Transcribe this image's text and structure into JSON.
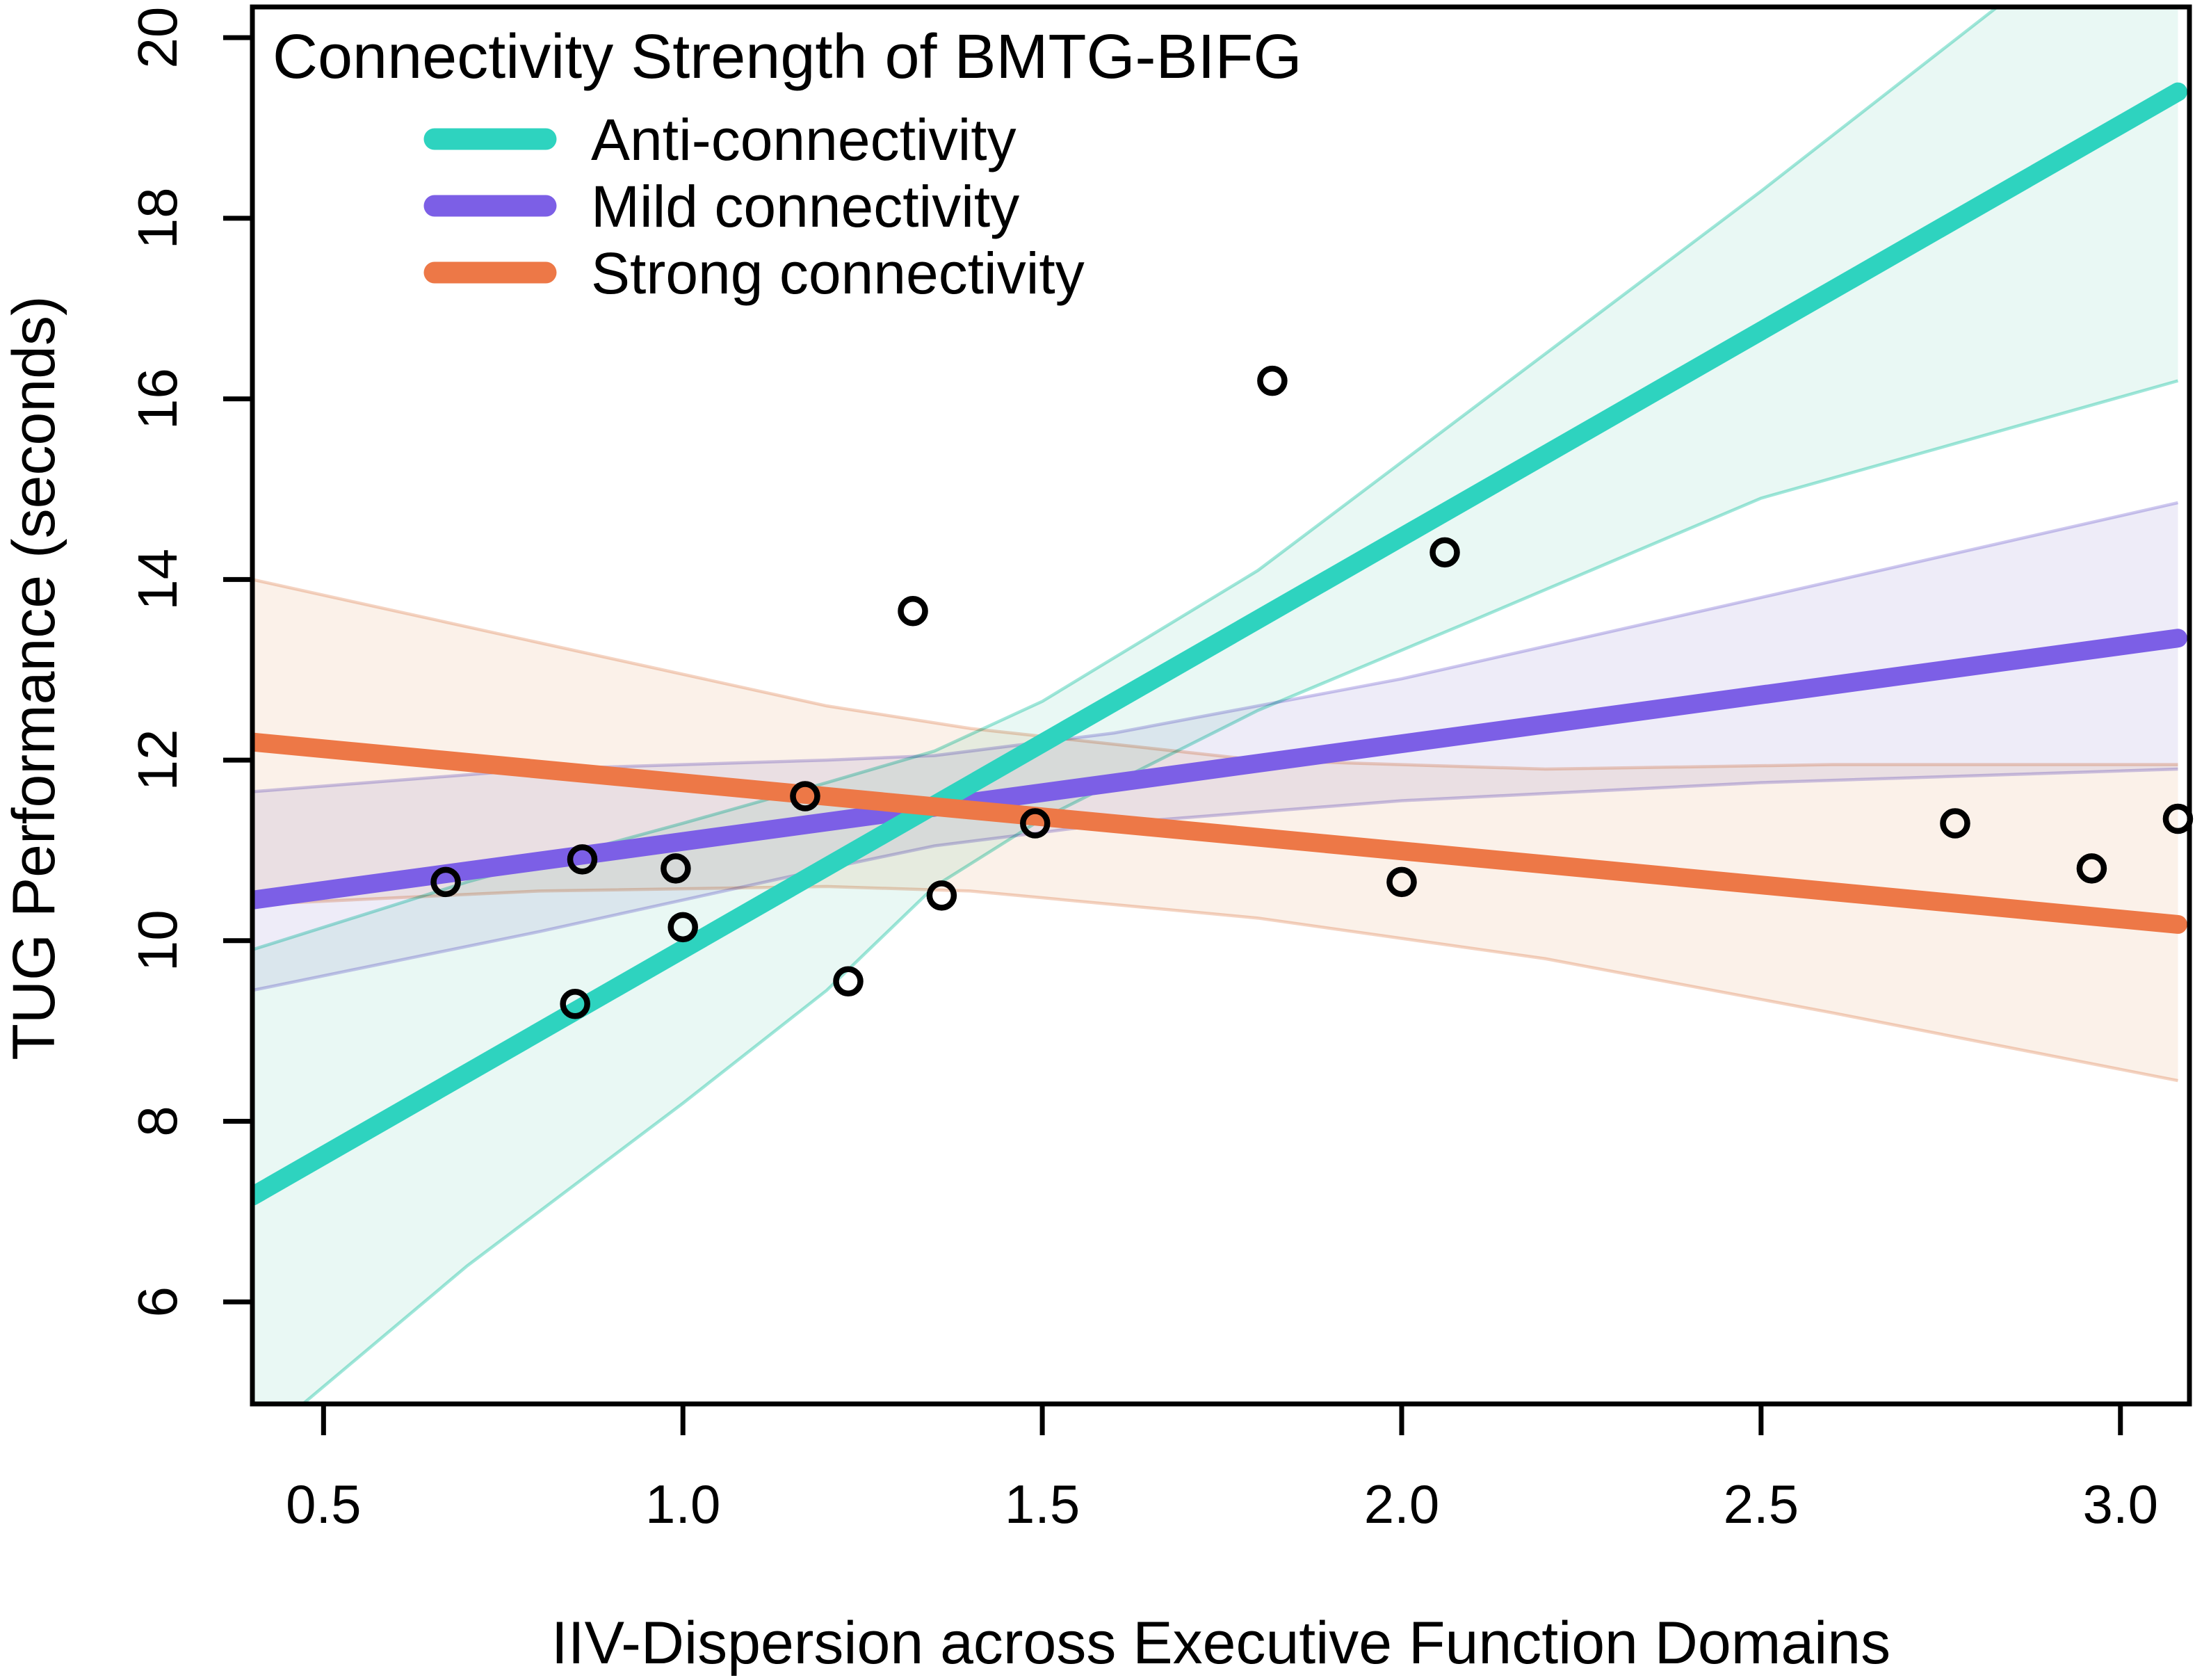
{
  "chart_data": {
    "type": "scatter",
    "title": "",
    "xlabel": "IIV-Dispersion across Executive Function Domains",
    "ylabel": "TUG Performance (seconds)",
    "xlim": [
      0.401,
      3.096
    ],
    "ylim": [
      4.87,
      20.34
    ],
    "grid": false,
    "x_ticks": [
      0.5,
      1.0,
      1.5,
      2.0,
      2.5,
      3.0
    ],
    "x_tick_labels": [
      "0.5",
      "1.0",
      "1.5",
      "2.0",
      "2.5",
      "3.0"
    ],
    "y_ticks": [
      6,
      8,
      10,
      12,
      14,
      16,
      18,
      20
    ],
    "y_tick_labels": [
      "6",
      "8",
      "10",
      "12",
      "14",
      "16",
      "18",
      "20"
    ],
    "axis_color": "#000000",
    "point_style": {
      "shape": "open-circle",
      "color": "#000000"
    },
    "legend": {
      "position": "top-left-inside",
      "title": "Connectivity Strength of BMTG-BIFG",
      "entries": [
        {
          "id": "anti",
          "label": "Anti-connectivity",
          "color": "#2ED3BF"
        },
        {
          "id": "mild",
          "label": "Mild connectivity",
          "color": "#7C5FE6"
        },
        {
          "id": "strong",
          "label": "Strong connectivity",
          "color": "#ED7847"
        }
      ]
    },
    "series": [
      {
        "id": "anti",
        "name": "Anti-connectivity",
        "kind": "regression-line-with-ci",
        "color": "#2ED3BF",
        "band_fill": "#E7F7F3",
        "band_edge": "#8FE3D4",
        "z": 2,
        "line": {
          "x": [
            0.401,
            3.08
          ],
          "y": [
            7.17,
            19.4
          ]
        },
        "band": {
          "x": [
            0.401,
            0.7,
            1.0,
            1.2,
            1.35,
            1.5,
            1.8,
            2.1,
            2.5,
            3.08
          ],
          "hi": [
            9.9,
            10.65,
            11.3,
            11.75,
            12.1,
            12.65,
            14.1,
            15.9,
            18.3,
            21.9
          ],
          "lo": [
            4.4,
            6.4,
            8.2,
            9.45,
            10.6,
            11.35,
            12.55,
            13.55,
            14.9,
            16.2
          ]
        }
      },
      {
        "id": "mild",
        "name": "Mild connectivity",
        "kind": "regression-line-with-ci",
        "color": "#7C5FE6",
        "band_fill": "#ECEAF7",
        "band_edge": "#C6BEEC",
        "z": 1,
        "line": {
          "x": [
            0.401,
            3.08
          ],
          "y": [
            10.45,
            13.35
          ]
        },
        "band": {
          "x": [
            0.401,
            0.8,
            1.2,
            1.35,
            1.6,
            2.0,
            2.5,
            3.08
          ],
          "hi": [
            11.65,
            11.9,
            12.0,
            12.05,
            12.3,
            12.9,
            13.8,
            14.85
          ],
          "lo": [
            9.45,
            10.1,
            10.8,
            11.05,
            11.3,
            11.55,
            11.75,
            11.9
          ]
        }
      },
      {
        "id": "strong",
        "name": "Strong connectivity",
        "kind": "regression-line-with-ci",
        "color": "#ED7847",
        "band_fill": "#FBEFE7",
        "band_edge": "#F2CDB9",
        "z": 3,
        "line": {
          "x": [
            0.401,
            3.08
          ],
          "y": [
            12.2,
            10.18
          ]
        },
        "band": {
          "x": [
            0.401,
            0.8,
            1.2,
            1.4,
            1.8,
            2.2,
            2.6,
            3.08
          ],
          "hi": [
            14.0,
            13.3,
            12.6,
            12.35,
            12.0,
            11.9,
            11.95,
            11.95
          ],
          "lo": [
            10.4,
            10.55,
            10.6,
            10.55,
            10.25,
            9.8,
            9.2,
            8.45
          ]
        }
      }
    ],
    "points": [
      [
        0.67,
        10.65
      ],
      [
        0.85,
        9.3
      ],
      [
        0.86,
        10.9
      ],
      [
        0.99,
        10.8
      ],
      [
        1.0,
        10.15
      ],
      [
        1.17,
        11.6
      ],
      [
        1.23,
        9.55
      ],
      [
        1.32,
        13.65
      ],
      [
        1.36,
        10.5
      ],
      [
        1.49,
        11.3
      ],
      [
        1.82,
        16.2
      ],
      [
        2.0,
        10.65
      ],
      [
        2.06,
        14.3
      ],
      [
        2.77,
        11.3
      ],
      [
        2.96,
        10.8
      ],
      [
        3.08,
        11.35
      ]
    ]
  }
}
